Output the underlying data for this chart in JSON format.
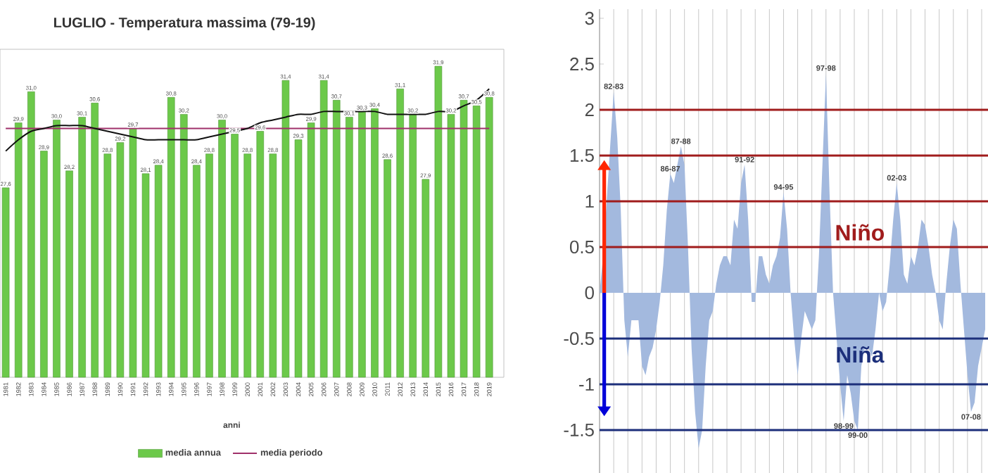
{
  "chart_data": [
    {
      "type": "bar",
      "title": "LUGLIO - Temperatura massima (79-19)",
      "xlabel": "anni",
      "categories": [
        "1981",
        "1982",
        "1983",
        "1984",
        "1985",
        "1986",
        "1987",
        "1988",
        "1989",
        "1990",
        "1991",
        "1992",
        "1993",
        "1994",
        "1995",
        "1996",
        "1997",
        "1998",
        "1999",
        "2000",
        "2001",
        "2002",
        "2003",
        "2004",
        "2005",
        "2006",
        "2007",
        "2008",
        "2009",
        "2010",
        "2011",
        "2012",
        "2013",
        "2014",
        "2015",
        "2016",
        "2017",
        "2018",
        "2019"
      ],
      "series": [
        {
          "name": "media annua",
          "type": "bar",
          "color": "#6cc94a",
          "values": [
            27.6,
            29.9,
            31.0,
            28.9,
            30.0,
            28.2,
            30.1,
            30.6,
            28.8,
            29.2,
            29.7,
            28.1,
            28.4,
            30.8,
            30.2,
            28.4,
            28.8,
            30.0,
            29.5,
            28.8,
            29.6,
            28.8,
            31.4,
            29.3,
            29.9,
            31.4,
            30.7,
            30.1,
            30.3,
            30.4,
            28.6,
            31.1,
            30.2,
            27.9,
            31.9,
            30.2,
            30.7,
            30.5,
            30.8
          ],
          "value_labels": [
            "27,6",
            "29,9",
            "31,0",
            "28,9",
            "30,0",
            "28,2",
            "30,1",
            "30,6",
            "28,8",
            "29,2",
            "29,7",
            "28,1",
            "28,4",
            "30,8",
            "30,2",
            "28,4",
            "28,8",
            "30,0",
            "29,5",
            "28,8",
            "29,6",
            "28,8",
            "31,4",
            "29,3",
            "29,9",
            "31,4",
            "30,7",
            "30,1",
            "30,3",
            "30,4",
            "28,6",
            "31,1",
            "30,2",
            "27,9",
            "31,9",
            "30,2",
            "30,7",
            "30,5",
            "30,8"
          ]
        },
        {
          "name": "media periodo",
          "type": "line",
          "color": "#a0306a",
          "values": [
            29.7,
            29.7,
            29.7,
            29.7,
            29.7,
            29.7,
            29.7,
            29.7,
            29.7,
            29.7,
            29.7,
            29.7,
            29.7,
            29.7,
            29.7,
            29.7,
            29.7,
            29.7,
            29.7,
            29.7,
            29.7,
            29.7,
            29.7,
            29.7,
            29.7,
            29.7,
            29.7,
            29.7,
            29.7,
            29.7,
            29.7,
            29.7,
            29.7,
            29.7,
            29.7,
            29.7,
            29.7,
            29.7,
            29.7
          ]
        },
        {
          "type": "line",
          "color": "#111111",
          "values": [
            28.9,
            29.3,
            29.6,
            29.7,
            29.8,
            29.8,
            29.8,
            29.7,
            29.6,
            29.5,
            29.4,
            29.3,
            29.3,
            29.3,
            29.3,
            29.3,
            29.4,
            29.5,
            29.6,
            29.7,
            29.9,
            30.0,
            30.1,
            30.2,
            30.2,
            30.3,
            30.3,
            30.3,
            30.3,
            30.3,
            30.2,
            30.2,
            30.2,
            30.2,
            30.3,
            30.3,
            30.5,
            30.7,
            31.1
          ]
        }
      ],
      "ylim": [
        20.9,
        32.5
      ],
      "tick_labels": "x",
      "legend": "bottom"
    },
    {
      "type": "area",
      "categories": [
        null,
        null,
        null,
        null,
        null,
        null,
        null,
        null,
        null,
        null,
        null,
        null,
        null,
        null,
        null,
        null,
        null,
        null,
        null,
        null,
        null,
        null,
        null,
        null,
        null,
        null,
        null,
        null,
        null,
        null,
        null,
        null,
        null,
        null,
        null,
        null,
        null,
        null,
        null,
        null,
        null,
        null,
        null,
        null,
        null,
        null,
        null,
        null,
        null,
        null,
        null,
        null,
        null,
        null,
        null,
        null,
        null,
        null,
        null,
        null,
        null,
        null,
        null,
        null,
        null,
        null,
        null,
        null,
        null,
        null,
        null,
        null,
        null,
        null,
        null,
        null,
        null,
        null,
        null,
        null,
        null,
        null,
        null,
        null,
        null,
        null,
        null,
        null,
        null,
        null,
        null,
        null,
        null,
        null,
        null,
        null,
        null,
        null,
        null,
        null,
        null,
        null,
        null,
        null,
        null,
        null,
        null,
        null,
        null,
        null
      ],
      "series": [
        {
          "color": "#a3b9de",
          "values": [
            0,
            0.4,
            1.0,
            1.6,
            2.2,
            1.7,
            0.9,
            -0.3,
            -0.7,
            -0.3,
            -0.3,
            -0.3,
            -0.8,
            -0.9,
            -0.7,
            -0.6,
            -0.4,
            -0.1,
            0.3,
            0.9,
            1.3,
            1.2,
            1.4,
            1.6,
            1.4,
            0.5,
            -0.6,
            -1.3,
            -1.7,
            -1.5,
            -0.8,
            -0.3,
            -0.2,
            0.1,
            0.3,
            0.4,
            0.4,
            0.3,
            0.8,
            0.7,
            1.2,
            1.4,
            0.8,
            -0.1,
            -0.1,
            0.4,
            0.4,
            0.2,
            0.1,
            0.3,
            0.4,
            0.6,
            1.1,
            0.7,
            0,
            -0.5,
            -0.9,
            -0.5,
            -0.2,
            -0.3,
            -0.4,
            -0.3,
            0.4,
            1.4,
            2.4,
            1.1,
            0,
            -0.5,
            -1.0,
            -1.4,
            -0.9,
            -1.1,
            -1.4,
            -1.5,
            -0.8,
            -0.6,
            -0.6,
            -0.7,
            -0.4,
            0,
            -0.2,
            -0.1,
            0.3,
            0.8,
            1.2,
            0.8,
            0.2,
            0.1,
            0.4,
            0.3,
            0.5,
            0.8,
            0.74,
            0.5,
            0.2,
            0,
            -0.3,
            -0.4,
            0.1,
            0.5,
            0.8,
            0.7,
            0.1,
            -0.4,
            -0.9,
            -1.3,
            -1.2,
            -0.8,
            -0.6,
            -0.4
          ]
        }
      ],
      "ylim": [
        -1.97,
        3.1
      ],
      "yticks": [
        -1.5,
        -1,
        -0.5,
        0,
        0.5,
        1,
        1.5,
        2,
        2.5,
        3
      ],
      "grid": "x",
      "tick_labels": "y",
      "ref_lines": [
        {
          "axis": "y",
          "value": 0.5,
          "label": "Niño",
          "color": "#a01c1c"
        },
        {
          "axis": "y",
          "value": 1,
          "color": "#a01c1c"
        },
        {
          "axis": "y",
          "value": 1.5,
          "color": "#a01c1c"
        },
        {
          "axis": "y",
          "value": 2,
          "color": "#a01c1c"
        },
        {
          "axis": "y",
          "value": -0.5,
          "label": "Niña",
          "color": "#1c2f7b"
        },
        {
          "axis": "y",
          "value": -1,
          "color": "#1c2f7b"
        },
        {
          "axis": "y",
          "value": -1.5,
          "color": "#1c2f7b"
        }
      ],
      "annotations": [
        {
          "text": "82-83",
          "y": 2.2
        },
        {
          "text": "86-87",
          "y": 1.3
        },
        {
          "text": "87-88",
          "y": 1.6
        },
        {
          "text": "91-92",
          "y": 1.4
        },
        {
          "text": "94-95",
          "y": 1.1
        },
        {
          "text": "97-98",
          "y": 2.4
        },
        {
          "text": "98-99",
          "y": -1.4
        },
        {
          "text": "99-00",
          "y": -1.5
        },
        {
          "text": "02-03",
          "y": 1.2
        },
        {
          "text": "07-08",
          "y": -1.3
        }
      ]
    }
  ]
}
